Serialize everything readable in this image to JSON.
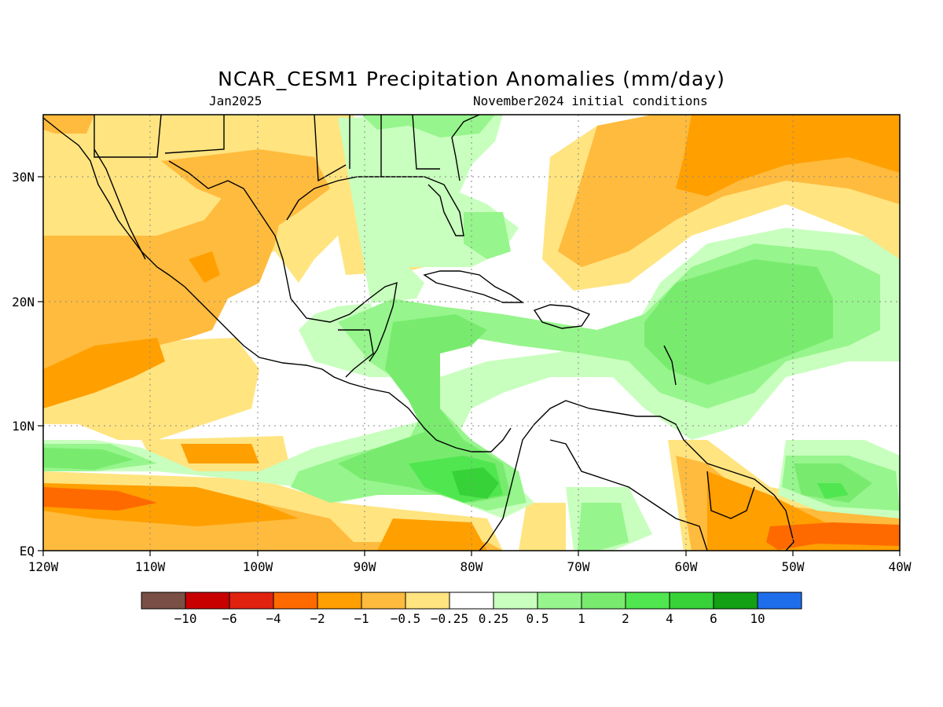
{
  "title": "NCAR_CESM1 Precipitation Anomalies (mm/day)",
  "subtitle_left": "Jan2025",
  "subtitle_right": "November2024 initial conditions",
  "map": {
    "lon_range": [
      -120,
      -40
    ],
    "lat_range": [
      0,
      35
    ],
    "x_ticks": [
      "120W",
      "110W",
      "100W",
      "90W",
      "80W",
      "70W",
      "60W",
      "50W",
      "40W"
    ],
    "y_ticks": [
      "EQ",
      "10N",
      "20N",
      "30N"
    ],
    "grid": "dotted"
  },
  "colorbar": {
    "colors": [
      "#7a4f45",
      "#c80000",
      "#e0220f",
      "#ff6a00",
      "#ff9f00",
      "#ffbb3d",
      "#ffe480",
      "#ffffff",
      "#c8ffbe",
      "#96f58c",
      "#78eb6e",
      "#50e650",
      "#37d237",
      "#14a014",
      "#1e6eeb"
    ],
    "labels": [
      "-10",
      "-6",
      "-4",
      "-2",
      "-1",
      "-0.5",
      "-0.25",
      "0.25",
      "0.5",
      "1",
      "2",
      "4",
      "6",
      "10"
    ]
  }
}
